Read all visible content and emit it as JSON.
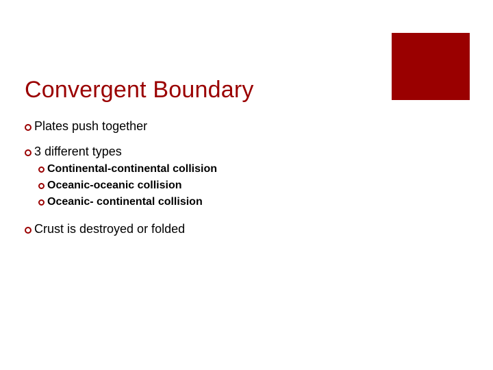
{
  "colors": {
    "accent": "#9a0000",
    "text": "#000000",
    "background": "#ffffff"
  },
  "title": "Convergent Boundary",
  "items": [
    {
      "level": 1,
      "text": "Plates push together"
    },
    {
      "level": 1,
      "text": "3 different types",
      "sub": [
        {
          "text": "Continental-continental collision"
        },
        {
          "text": "Oceanic-oceanic collision"
        },
        {
          "text": "Oceanic- continental collision"
        }
      ]
    },
    {
      "level": 1,
      "text": "Crust is destroyed or folded"
    }
  ]
}
